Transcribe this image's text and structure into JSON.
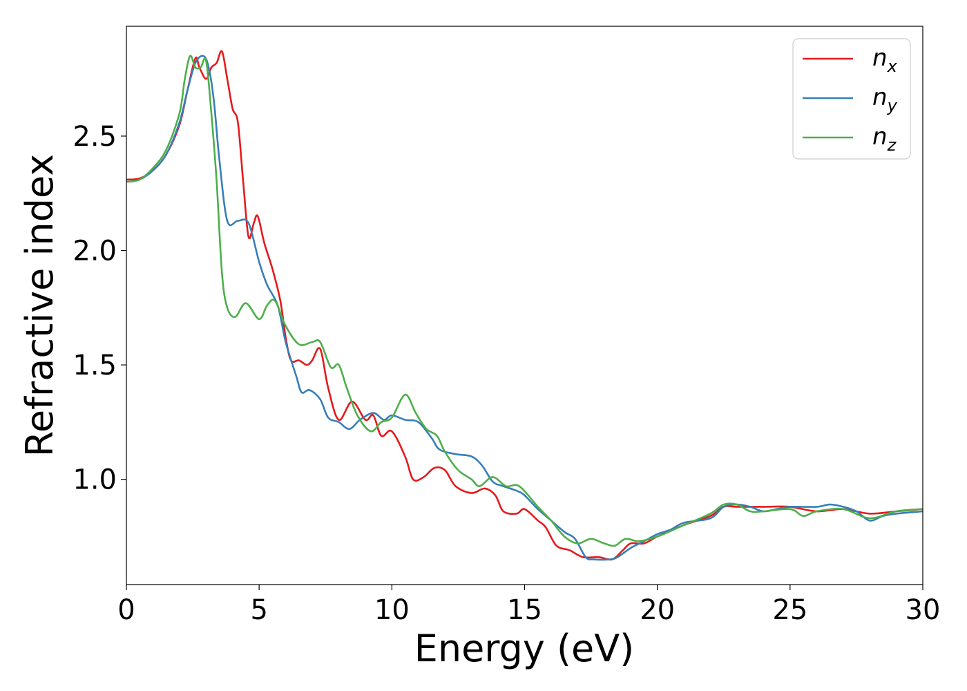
{
  "chart_data": {
    "type": "line",
    "title": "",
    "xlabel": "Energy (eV)",
    "ylabel": "Refractive index",
    "xlim": [
      0,
      30
    ],
    "ylim": [
      0.54,
      2.98
    ],
    "xticks": [
      0,
      5,
      10,
      15,
      20,
      25,
      30
    ],
    "xtick_labels": [
      "0",
      "5",
      "10",
      "15",
      "20",
      "25",
      "30"
    ],
    "yticks": [
      1.0,
      1.5,
      2.0,
      2.5
    ],
    "ytick_labels": [
      "1.0",
      "1.5",
      "2.0",
      "2.5"
    ],
    "grid": false,
    "legend_position": "top-right",
    "series": [
      {
        "name": "n_x",
        "label_base": "n",
        "label_sub": "x",
        "color": "#e41a1c",
        "points": [
          [
            0,
            2.31
          ],
          [
            0.5,
            2.315
          ],
          [
            1,
            2.35
          ],
          [
            1.5,
            2.42
          ],
          [
            2,
            2.55
          ],
          [
            2.3,
            2.7
          ],
          [
            2.6,
            2.84
          ],
          [
            2.75,
            2.8
          ],
          [
            3.0,
            2.75
          ],
          [
            3.2,
            2.8
          ],
          [
            3.4,
            2.82
          ],
          [
            3.6,
            2.87
          ],
          [
            3.8,
            2.75
          ],
          [
            4.0,
            2.62
          ],
          [
            4.2,
            2.56
          ],
          [
            4.4,
            2.3
          ],
          [
            4.6,
            2.06
          ],
          [
            4.8,
            2.12
          ],
          [
            4.95,
            2.15
          ],
          [
            5.2,
            2.03
          ],
          [
            5.5,
            1.92
          ],
          [
            5.8,
            1.78
          ],
          [
            6.0,
            1.62
          ],
          [
            6.2,
            1.52
          ],
          [
            6.5,
            1.52
          ],
          [
            6.8,
            1.5
          ],
          [
            7.0,
            1.52
          ],
          [
            7.3,
            1.57
          ],
          [
            7.6,
            1.4
          ],
          [
            8.0,
            1.26
          ],
          [
            8.5,
            1.34
          ],
          [
            9.0,
            1.26
          ],
          [
            9.3,
            1.28
          ],
          [
            9.6,
            1.19
          ],
          [
            10.0,
            1.21
          ],
          [
            10.5,
            1.1
          ],
          [
            10.8,
            1.0
          ],
          [
            11.2,
            1.01
          ],
          [
            11.6,
            1.05
          ],
          [
            12.0,
            1.04
          ],
          [
            12.4,
            0.97
          ],
          [
            13.0,
            0.94
          ],
          [
            13.5,
            0.96
          ],
          [
            13.9,
            0.93
          ],
          [
            14.2,
            0.86
          ],
          [
            14.7,
            0.85
          ],
          [
            15.0,
            0.87
          ],
          [
            15.5,
            0.82
          ],
          [
            15.8,
            0.79
          ],
          [
            16.2,
            0.71
          ],
          [
            16.7,
            0.69
          ],
          [
            17.2,
            0.66
          ],
          [
            17.8,
            0.66
          ],
          [
            18.3,
            0.65
          ],
          [
            18.7,
            0.69
          ],
          [
            19.0,
            0.72
          ],
          [
            19.5,
            0.72
          ],
          [
            20.0,
            0.75
          ],
          [
            21.0,
            0.8
          ],
          [
            22.0,
            0.84
          ],
          [
            22.5,
            0.88
          ],
          [
            23.0,
            0.88
          ],
          [
            24.0,
            0.88
          ],
          [
            25.0,
            0.88
          ],
          [
            26.0,
            0.86
          ],
          [
            27.0,
            0.87
          ],
          [
            28.0,
            0.85
          ],
          [
            29.0,
            0.86
          ],
          [
            30.0,
            0.87
          ]
        ]
      },
      {
        "name": "n_y",
        "label_base": "n",
        "label_sub": "y",
        "color": "#377eb8",
        "points": [
          [
            0,
            2.3
          ],
          [
            0.5,
            2.31
          ],
          [
            1,
            2.35
          ],
          [
            1.5,
            2.42
          ],
          [
            2,
            2.56
          ],
          [
            2.3,
            2.7
          ],
          [
            2.6,
            2.82
          ],
          [
            2.9,
            2.85
          ],
          [
            3.1,
            2.8
          ],
          [
            3.3,
            2.65
          ],
          [
            3.5,
            2.4
          ],
          [
            3.8,
            2.13
          ],
          [
            4.2,
            2.13
          ],
          [
            4.6,
            2.12
          ],
          [
            5.0,
            1.95
          ],
          [
            5.3,
            1.85
          ],
          [
            5.7,
            1.76
          ],
          [
            6.0,
            1.6
          ],
          [
            6.4,
            1.45
          ],
          [
            6.6,
            1.38
          ],
          [
            6.9,
            1.39
          ],
          [
            7.3,
            1.35
          ],
          [
            7.6,
            1.27
          ],
          [
            8.0,
            1.25
          ],
          [
            8.4,
            1.22
          ],
          [
            8.8,
            1.26
          ],
          [
            9.3,
            1.29
          ],
          [
            9.7,
            1.26
          ],
          [
            10.0,
            1.28
          ],
          [
            10.5,
            1.26
          ],
          [
            11.0,
            1.25
          ],
          [
            11.5,
            1.18
          ],
          [
            11.8,
            1.13
          ],
          [
            12.4,
            1.11
          ],
          [
            13.0,
            1.1
          ],
          [
            13.4,
            1.06
          ],
          [
            13.8,
            0.99
          ],
          [
            14.2,
            0.97
          ],
          [
            14.7,
            0.95
          ],
          [
            15.0,
            0.93
          ],
          [
            15.5,
            0.87
          ],
          [
            16.0,
            0.82
          ],
          [
            16.5,
            0.77
          ],
          [
            16.9,
            0.74
          ],
          [
            17.3,
            0.66
          ],
          [
            17.6,
            0.65
          ],
          [
            18.2,
            0.65
          ],
          [
            18.5,
            0.66
          ],
          [
            19.0,
            0.7
          ],
          [
            19.5,
            0.73
          ],
          [
            20.0,
            0.76
          ],
          [
            20.5,
            0.78
          ],
          [
            21.0,
            0.81
          ],
          [
            22.0,
            0.83
          ],
          [
            22.5,
            0.88
          ],
          [
            23.0,
            0.89
          ],
          [
            23.5,
            0.88
          ],
          [
            24.0,
            0.86
          ],
          [
            24.5,
            0.87
          ],
          [
            25.0,
            0.88
          ],
          [
            26.0,
            0.88
          ],
          [
            26.5,
            0.89
          ],
          [
            27.0,
            0.88
          ],
          [
            27.5,
            0.86
          ],
          [
            28.0,
            0.82
          ],
          [
            28.5,
            0.84
          ],
          [
            29.0,
            0.85
          ],
          [
            30.0,
            0.86
          ]
        ]
      },
      {
        "name": "n_z",
        "label_base": "n",
        "label_sub": "z",
        "color": "#4daf4a",
        "points": [
          [
            0,
            2.3
          ],
          [
            0.5,
            2.31
          ],
          [
            1,
            2.36
          ],
          [
            1.5,
            2.44
          ],
          [
            2,
            2.6
          ],
          [
            2.2,
            2.75
          ],
          [
            2.4,
            2.85
          ],
          [
            2.6,
            2.8
          ],
          [
            2.8,
            2.8
          ],
          [
            3.0,
            2.83
          ],
          [
            3.2,
            2.6
          ],
          [
            3.4,
            2.3
          ],
          [
            3.6,
            1.9
          ],
          [
            3.8,
            1.75
          ],
          [
            4.1,
            1.71
          ],
          [
            4.5,
            1.77
          ],
          [
            5.0,
            1.7
          ],
          [
            5.3,
            1.76
          ],
          [
            5.6,
            1.78
          ],
          [
            6.0,
            1.67
          ],
          [
            6.5,
            1.59
          ],
          [
            7.0,
            1.6
          ],
          [
            7.3,
            1.6
          ],
          [
            7.7,
            1.49
          ],
          [
            8.0,
            1.5
          ],
          [
            8.3,
            1.4
          ],
          [
            8.7,
            1.28
          ],
          [
            9.2,
            1.21
          ],
          [
            9.6,
            1.25
          ],
          [
            10.0,
            1.27
          ],
          [
            10.5,
            1.37
          ],
          [
            10.9,
            1.29
          ],
          [
            11.3,
            1.22
          ],
          [
            11.7,
            1.19
          ],
          [
            12.0,
            1.12
          ],
          [
            12.5,
            1.04
          ],
          [
            13.0,
            1.0
          ],
          [
            13.3,
            0.97
          ],
          [
            13.8,
            1.01
          ],
          [
            14.3,
            0.97
          ],
          [
            14.8,
            0.97
          ],
          [
            15.5,
            0.88
          ],
          [
            16.0,
            0.82
          ],
          [
            16.5,
            0.75
          ],
          [
            17.0,
            0.72
          ],
          [
            17.5,
            0.74
          ],
          [
            18.0,
            0.72
          ],
          [
            18.4,
            0.71
          ],
          [
            18.8,
            0.74
          ],
          [
            19.3,
            0.73
          ],
          [
            20.0,
            0.75
          ],
          [
            21.0,
            0.8
          ],
          [
            22.0,
            0.85
          ],
          [
            22.5,
            0.89
          ],
          [
            23.0,
            0.89
          ],
          [
            23.5,
            0.86
          ],
          [
            24.0,
            0.86
          ],
          [
            25.0,
            0.87
          ],
          [
            25.5,
            0.84
          ],
          [
            26.0,
            0.86
          ],
          [
            27.0,
            0.87
          ],
          [
            28.0,
            0.83
          ],
          [
            29.0,
            0.86
          ],
          [
            30.0,
            0.87
          ]
        ]
      }
    ]
  }
}
